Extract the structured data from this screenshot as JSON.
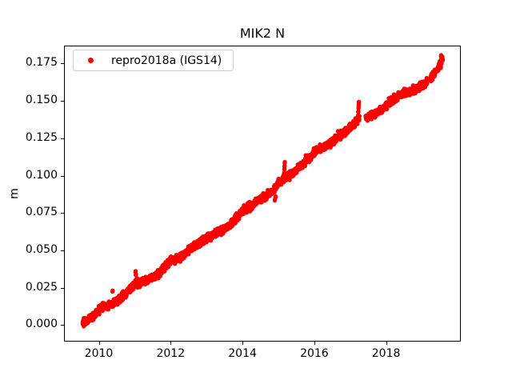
{
  "chart_data": {
    "type": "scatter",
    "title": "MIK2 N",
    "xlabel": "",
    "ylabel": "m",
    "grid": false,
    "legend": {
      "label": "repro2018a (IGS14)",
      "marker": "dot",
      "location": "upper left"
    },
    "series_name": "repro2018a (IGS14)",
    "series_color": "#ff0000",
    "marker": "point",
    "xlim": [
      2009.03,
      2020.08
    ],
    "ylim": [
      -0.011,
      0.187
    ],
    "x_ticks": [
      {
        "value": 2010,
        "label": "2010"
      },
      {
        "value": 2012,
        "label": "2012"
      },
      {
        "value": 2014,
        "label": "2014"
      },
      {
        "value": 2016,
        "label": "2016"
      },
      {
        "value": 2018,
        "label": "2018"
      }
    ],
    "y_ticks": [
      {
        "value": 0.0,
        "label": "0.000"
      },
      {
        "value": 0.025,
        "label": "0.025"
      },
      {
        "value": 0.05,
        "label": "0.050"
      },
      {
        "value": 0.075,
        "label": "0.075"
      },
      {
        "value": 0.1,
        "label": "0.100"
      },
      {
        "value": 0.125,
        "label": "0.125"
      },
      {
        "value": 0.15,
        "label": "0.150"
      },
      {
        "value": 0.175,
        "label": "0.175"
      }
    ],
    "trend_anchors": [
      [
        2009.55,
        0.001
      ],
      [
        2009.7,
        0.004
      ],
      [
        2009.85,
        0.006
      ],
      [
        2010.0,
        0.01
      ],
      [
        2010.15,
        0.0125
      ],
      [
        2010.3,
        0.013
      ],
      [
        2010.45,
        0.016
      ],
      [
        2010.6,
        0.018
      ],
      [
        2010.75,
        0.021
      ],
      [
        2010.9,
        0.025
      ],
      [
        2011.05,
        0.028
      ],
      [
        2011.2,
        0.029
      ],
      [
        2011.35,
        0.03
      ],
      [
        2011.5,
        0.032
      ],
      [
        2011.65,
        0.034
      ],
      [
        2011.8,
        0.038
      ],
      [
        2012.0,
        0.043
      ],
      [
        2012.15,
        0.0445
      ],
      [
        2012.3,
        0.046
      ],
      [
        2012.45,
        0.049
      ],
      [
        2012.6,
        0.052
      ],
      [
        2012.75,
        0.0545
      ],
      [
        2012.9,
        0.056
      ],
      [
        2013.05,
        0.059
      ],
      [
        2013.2,
        0.061
      ],
      [
        2013.35,
        0.0625
      ],
      [
        2013.5,
        0.0645
      ],
      [
        2013.65,
        0.067
      ],
      [
        2013.8,
        0.071
      ],
      [
        2013.95,
        0.0755
      ],
      [
        2014.1,
        0.078
      ],
      [
        2014.25,
        0.08
      ],
      [
        2014.4,
        0.083
      ],
      [
        2014.55,
        0.085
      ],
      [
        2014.7,
        0.0875
      ],
      [
        2014.85,
        0.09
      ],
      [
        2015.0,
        0.0955
      ],
      [
        2015.15,
        0.098
      ],
      [
        2015.3,
        0.1
      ],
      [
        2015.45,
        0.103
      ],
      [
        2015.6,
        0.106
      ],
      [
        2015.75,
        0.11
      ],
      [
        2015.9,
        0.113
      ],
      [
        2016.05,
        0.117
      ],
      [
        2016.2,
        0.1185
      ],
      [
        2016.35,
        0.12
      ],
      [
        2016.5,
        0.123
      ],
      [
        2016.65,
        0.126
      ],
      [
        2016.8,
        0.128
      ],
      [
        2016.95,
        0.131
      ],
      [
        2017.1,
        0.135
      ],
      [
        2017.25,
        0.1375
      ],
      [
        2017.45,
        0.139
      ],
      [
        2017.6,
        0.1405
      ],
      [
        2017.75,
        0.142
      ],
      [
        2017.9,
        0.1445
      ],
      [
        2018.05,
        0.148
      ],
      [
        2018.2,
        0.151
      ],
      [
        2018.35,
        0.1535
      ],
      [
        2018.5,
        0.1555
      ],
      [
        2018.65,
        0.156
      ],
      [
        2018.8,
        0.1575
      ],
      [
        2018.95,
        0.1595
      ],
      [
        2019.1,
        0.162
      ],
      [
        2019.25,
        0.166
      ],
      [
        2019.35,
        0.1685
      ],
      [
        2019.45,
        0.1715
      ],
      [
        2019.52,
        0.175
      ],
      [
        2019.58,
        0.179
      ]
    ],
    "data_gaps": [
      [
        2017.26,
        2017.43
      ],
      [
        2019.16,
        2019.23
      ],
      [
        2019.37,
        2019.42
      ]
    ],
    "outliers": [
      [
        2010.38,
        0.0225
      ],
      [
        2011.02,
        0.0355
      ],
      [
        2011.03,
        0.0335
      ],
      [
        2014.9,
        0.0835
      ],
      [
        2014.92,
        0.0855
      ],
      [
        2015.16,
        0.0975
      ],
      [
        2015.16,
        0.1015
      ],
      [
        2015.165,
        0.104
      ],
      [
        2015.17,
        0.106
      ],
      [
        2015.175,
        0.1085
      ],
      [
        2017.215,
        0.138
      ],
      [
        2017.22,
        0.14
      ],
      [
        2017.225,
        0.1425
      ],
      [
        2017.23,
        0.145
      ],
      [
        2017.235,
        0.147
      ],
      [
        2017.24,
        0.1488
      ],
      [
        2019.52,
        0.172
      ],
      [
        2019.53,
        0.18
      ],
      [
        2019.54,
        0.1785
      ],
      [
        2019.55,
        0.1765
      ]
    ],
    "points_per_year": 300,
    "noise_sigma": 0.0012,
    "marker_radius_px": 2.7
  }
}
